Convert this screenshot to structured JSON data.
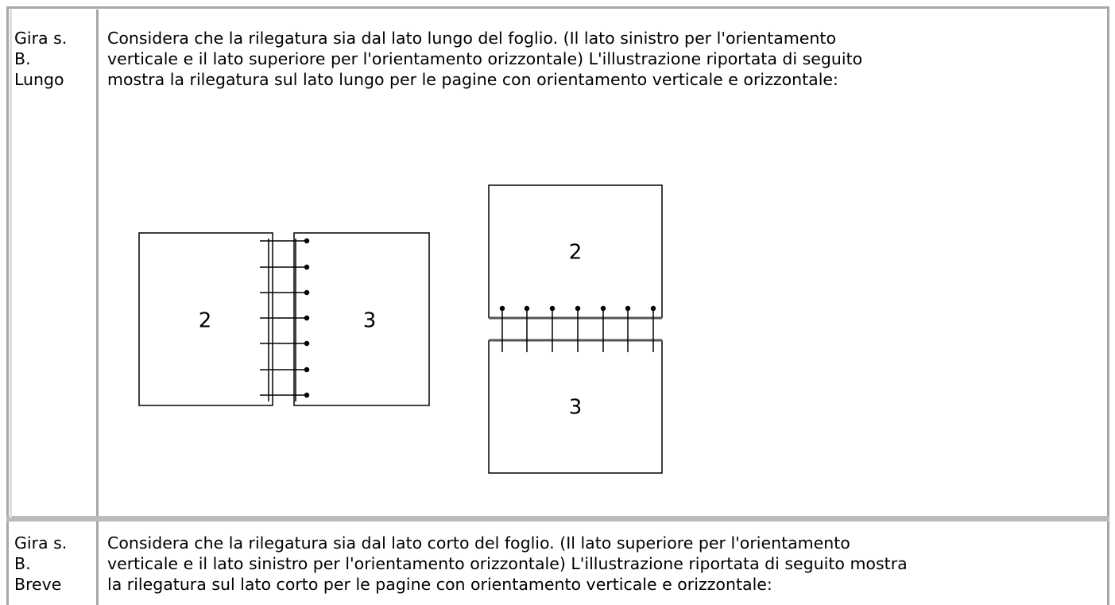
{
  "table": {
    "rows": [
      {
        "label": [
          "Gira s.",
          "B.",
          "Lungo"
        ],
        "description": [
          "Considera che la rilegatura sia dal lato lungo del foglio. (Il lato sinistro per l'orientamento",
          "verticale e il lato superiore per l'orientamento orizzontale) L'illustrazione riportata di seguito",
          "mostra la rilegatura sul lato lungo per le pagine con orientamento verticale e orizzontale:"
        ],
        "illustration": {
          "landscape_pages": [
            "2",
            "3"
          ],
          "portrait_pages": [
            "2",
            "3"
          ]
        }
      },
      {
        "label": [
          "Gira s.",
          "B.",
          "Breve"
        ],
        "description": [
          "Considera che la rilegatura sia dal lato corto del foglio. (Il lato superiore per l'orientamento",
          "verticale e il lato sinistro per l'orientamento orizzontale) L'illustrazione riportata di seguito mostra",
          "la rilegatura sul lato corto per le pagine con orientamento verticale e orizzontale:"
        ]
      }
    ]
  }
}
